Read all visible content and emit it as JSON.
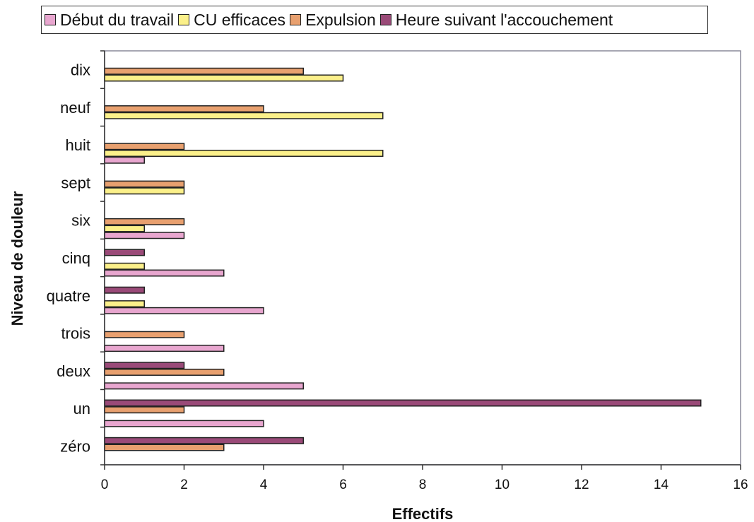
{
  "chart_data": {
    "type": "bar",
    "orientation": "horizontal",
    "title": "",
    "xlabel": "Effectifs",
    "ylabel": "Niveau de douleur",
    "xlim": [
      0,
      16
    ],
    "xticks": [
      0,
      2,
      4,
      6,
      8,
      10,
      12,
      14,
      16
    ],
    "grid": false,
    "legend_position": "top",
    "categories": [
      "zéro",
      "un",
      "deux",
      "trois",
      "quatre",
      "cinq",
      "six",
      "sept",
      "huit",
      "neuf",
      "dix"
    ],
    "series": [
      {
        "name": "Début du travail",
        "color": "#e8a6cf",
        "values": [
          0,
          4,
          5,
          3,
          4,
          3,
          2,
          0,
          1,
          0,
          0
        ]
      },
      {
        "name": "CU efficaces",
        "color": "#fbf08a",
        "values": [
          0,
          0,
          0,
          0,
          1,
          1,
          1,
          2,
          7,
          7,
          6
        ]
      },
      {
        "name": "Expulsion",
        "color": "#e8a06f",
        "values": [
          3,
          2,
          3,
          2,
          0,
          0,
          2,
          2,
          2,
          4,
          5
        ]
      },
      {
        "name": "Heure suivant l'accouchement",
        "color": "#9a4a78",
        "values": [
          5,
          15,
          2,
          0,
          1,
          1,
          0,
          0,
          0,
          0,
          0
        ]
      }
    ]
  }
}
